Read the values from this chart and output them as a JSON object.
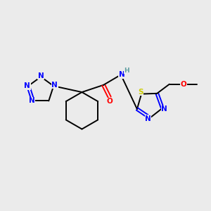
{
  "background_color": "#ebebeb",
  "bond_color": "#000000",
  "atom_colors": {
    "N": "#0000ff",
    "O": "#ff0000",
    "S": "#cccc00",
    "C": "#000000",
    "H": "#5f9ea0"
  },
  "lw": 1.4,
  "fs": 7.5
}
